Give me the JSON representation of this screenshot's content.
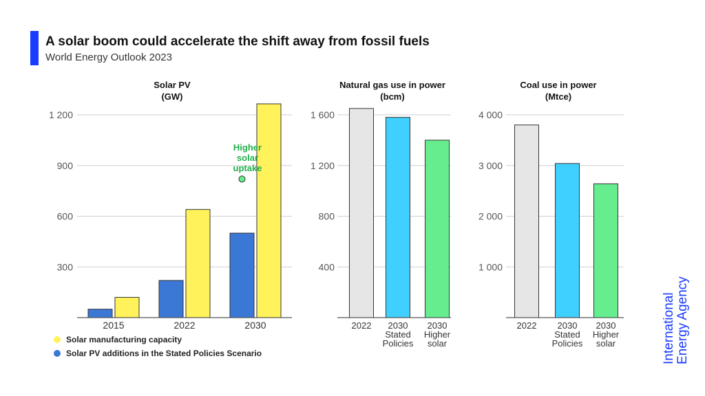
{
  "header": {
    "title": "A solar boom could accelerate the shift away from fossil fuels",
    "subtitle": "World Energy Outlook 2023"
  },
  "brand": {
    "line1": "International",
    "line2": "Energy Agency"
  },
  "colors": {
    "accent": "#1a3cff",
    "manufacturing": "#fff25a",
    "additions": "#3b78d6",
    "base_2022": "#e6e6e6",
    "stated_policies": "#40d0ff",
    "higher_solar": "#66ee8e",
    "annotation": "#22b04a"
  },
  "legend": [
    {
      "label": "Solar manufacturing capacity",
      "color": "#fff25a"
    },
    {
      "label": "Solar PV additions in the Stated Policies Scenario",
      "color": "#3b78d6"
    }
  ],
  "chart_data": [
    {
      "type": "bar",
      "title": "Solar PV\n(GW)",
      "categories": [
        "2015",
        "2022",
        "2030"
      ],
      "ylim": [
        0,
        1200
      ],
      "yticks": [
        300,
        600,
        900,
        1200
      ],
      "ytick_labels": [
        "300",
        "600",
        "900",
        "1 200"
      ],
      "grid": true,
      "series": [
        {
          "name": "Solar PV additions in the Stated Policies Scenario",
          "values": [
            50,
            220,
            500
          ],
          "color": "#3b78d6"
        },
        {
          "name": "Solar manufacturing capacity",
          "values": [
            120,
            640,
            1265
          ],
          "color": "#fff25a"
        }
      ],
      "annotation": {
        "text": "Higher\nsolar\nuptake",
        "category": "2030",
        "value": 820
      }
    },
    {
      "type": "bar",
      "title": "Natural gas use in power\n(bcm)",
      "categories": [
        "2022",
        "2030\nStated\nPolicies",
        "2030\nHigher\nsolar"
      ],
      "ylim": [
        0,
        1600
      ],
      "yticks": [
        400,
        800,
        1200,
        1600
      ],
      "ytick_labels": [
        "400",
        "800",
        "1 200",
        "1 600"
      ],
      "grid": true,
      "values": [
        1650,
        1580,
        1400
      ],
      "colors": [
        "#e6e6e6",
        "#40d0ff",
        "#66ee8e"
      ]
    },
    {
      "type": "bar",
      "title": "Coal use in power\n(Mtce)",
      "categories": [
        "2022",
        "2030\nStated\nPolicies",
        "2030\nHigher\nsolar"
      ],
      "ylim": [
        0,
        4000
      ],
      "yticks": [
        1000,
        2000,
        3000,
        4000
      ],
      "ytick_labels": [
        "1 000",
        "2 000",
        "3 000",
        "4 000"
      ],
      "grid": true,
      "values": [
        3800,
        3040,
        2640
      ],
      "colors": [
        "#e6e6e6",
        "#40d0ff",
        "#66ee8e"
      ]
    }
  ]
}
